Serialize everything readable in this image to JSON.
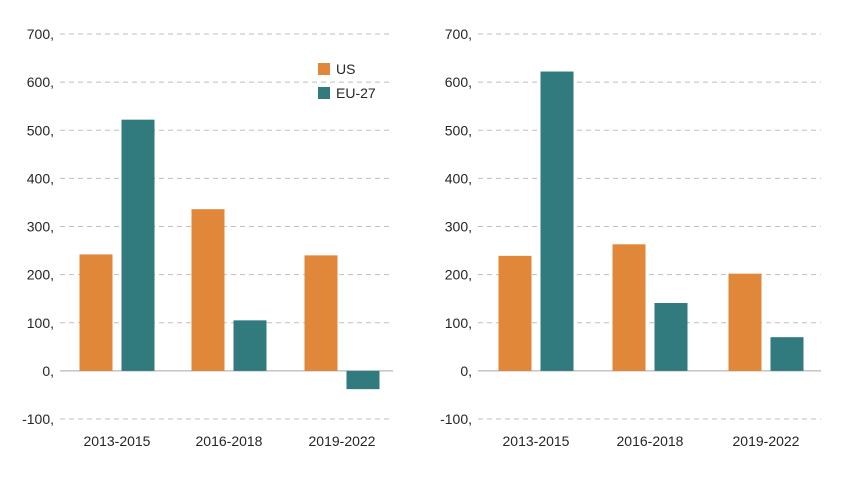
{
  "colors": {
    "us": "#E0873A",
    "eu": "#317A7E"
  },
  "chart_data": [
    {
      "type": "bar",
      "categories": [
        "2013-2015",
        "2016-2018",
        "2019-2022"
      ],
      "series": [
        {
          "name": "US",
          "values": [
            242,
            336,
            240
          ]
        },
        {
          "name": "EU-27",
          "values": [
            522,
            105,
            -38
          ]
        }
      ],
      "ylim": [
        -100,
        700
      ],
      "yticks": [
        -100,
        0,
        100,
        200,
        300,
        400,
        500,
        600,
        700
      ],
      "ytick_labels": [
        "-100,",
        "0,",
        "100,",
        "200,",
        "300,",
        "400,",
        "500,",
        "600,",
        "700,"
      ],
      "grid": true,
      "legend": "top-right"
    },
    {
      "type": "bar",
      "categories": [
        "2013-2015",
        "2016-2018",
        "2019-2022"
      ],
      "series": [
        {
          "name": "US",
          "values": [
            239,
            263,
            202
          ]
        },
        {
          "name": "EU-27",
          "values": [
            622,
            141,
            70
          ]
        }
      ],
      "ylim": [
        -100,
        700
      ],
      "yticks": [
        -100,
        0,
        100,
        200,
        300,
        400,
        500,
        600,
        700
      ],
      "ytick_labels": [
        "-100,",
        "0,",
        "100,",
        "200,",
        "300,",
        "400,",
        "500,",
        "600,",
        "700,"
      ],
      "grid": true,
      "legend": "none"
    }
  ]
}
